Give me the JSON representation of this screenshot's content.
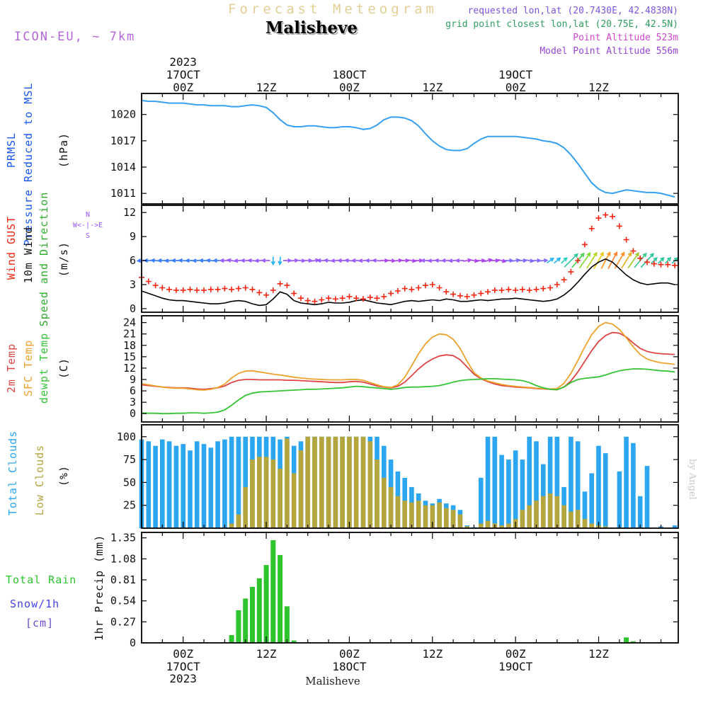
{
  "header": {
    "watermark_title": "Forecast Meteogram",
    "station": "Malisheve",
    "model": "ICON-EU, ~ 7km",
    "requested": "requested lon,lat (20.7430E, 42.4838N)",
    "grid_point": "grid point closest lon,lat (20.75E, 42.5N)",
    "altitude": "Point Altitude 523m",
    "model_altitude": "Model Point Altitude 556m"
  },
  "footer": {
    "station": "Malisheve"
  },
  "watermark": "by Angel",
  "labels": {
    "pressure": [
      "PRMSL",
      "Pressure Reduced to MSL",
      "(hPa)"
    ],
    "wind": [
      "Wind GUST",
      "10m Wind",
      "Speed and Direction",
      "(m/s)"
    ],
    "temp": [
      "2m Temp",
      "SFC Temp",
      "dewpt Temp",
      "(C)"
    ],
    "clouds": [
      "Total Clouds",
      "Low Clouds",
      "(%)"
    ],
    "precip": [
      "Total  Rain",
      "Snow/1h",
      "[cm]",
      "1hr Precip (mm)"
    ],
    "compass": [
      "N",
      "W<-|->E",
      "S"
    ]
  },
  "colors": {
    "watermark_title": "#e3cf96",
    "model": "#b466d9",
    "requested": "#7d55e0",
    "grid_point": "#2f9e60",
    "altitude": "#cf46cf",
    "model_altitude": "#9946d8",
    "pressure_label": "#1a56f0",
    "pressure_line": "#36a0f2",
    "gust": "#f22613",
    "wind_speed": "#000000",
    "green_label": "#2fae2f",
    "temp2m": "#df4545",
    "sfc": "#eca22c",
    "dew": "#35c435",
    "total_clouds": "#2da6f2",
    "low_clouds": "#b4a63c",
    "precip": "#2dc42d",
    "snow_label": "#4343e0",
    "cm_label": "#6a4ad0",
    "compass": "#9b59ff",
    "author": "#c9c9c9"
  },
  "time": {
    "start_hour": -6,
    "end_hour": 71.5,
    "step_hours": 1
  },
  "time_axis": {
    "minor_step_h": 3,
    "major": [
      {
        "h": 0,
        "z": "00Z",
        "date": "17OCT",
        "year": "2023"
      },
      {
        "h": 12,
        "z": "12Z"
      },
      {
        "h": 24,
        "z": "00Z",
        "date": "18OCT"
      },
      {
        "h": 36,
        "z": "12Z"
      },
      {
        "h": 48,
        "z": "00Z",
        "date": "19OCT"
      },
      {
        "h": 60,
        "z": "12Z"
      }
    ]
  },
  "chart_data": [
    {
      "type": "line",
      "title": "Pressure Reduced to MSL",
      "ylabel": "PRMSL Pressure Reduced to MSL (hPa)",
      "ylim": [
        1009.8,
        1022.4
      ],
      "yticks": [
        1011,
        1014,
        1017,
        1020
      ],
      "series": [
        {
          "name": "PRMSL",
          "color": "#36a0f2",
          "values": [
            1021.6,
            1021.5,
            1021.5,
            1021.4,
            1021.3,
            1021.3,
            1021.3,
            1021.2,
            1021.1,
            1021.1,
            1021.0,
            1021.0,
            1021.0,
            1020.9,
            1020.9,
            1021.0,
            1021.1,
            1021.0,
            1020.8,
            1020.2,
            1019.4,
            1018.8,
            1018.6,
            1018.6,
            1018.7,
            1018.7,
            1018.6,
            1018.5,
            1018.5,
            1018.6,
            1018.6,
            1018.5,
            1018.3,
            1018.4,
            1018.8,
            1019.4,
            1019.7,
            1019.7,
            1019.6,
            1019.3,
            1018.7,
            1017.8,
            1017.0,
            1016.4,
            1016.0,
            1015.9,
            1015.9,
            1016.1,
            1016.7,
            1017.2,
            1017.5,
            1017.5,
            1017.5,
            1017.5,
            1017.5,
            1017.4,
            1017.3,
            1017.2,
            1017.0,
            1016.9,
            1016.7,
            1016.2,
            1015.4,
            1014.4,
            1013.3,
            1012.2,
            1011.5,
            1011.1,
            1011.0,
            1011.2,
            1011.4,
            1011.3,
            1011.2,
            1011.1,
            1011.1,
            1011.0,
            1010.8,
            1010.6
          ]
        }
      ]
    },
    {
      "type": "line",
      "title": "Wind GUST / 10m Wind Speed and Direction (m/s)",
      "ylim": [
        -0.45,
        12.9
      ],
      "yticks": [
        0,
        3,
        6,
        9,
        12
      ],
      "series": [
        {
          "name": "Wind GUST",
          "color": "#f22613",
          "marker": "plus",
          "values": [
            3.9,
            3.4,
            2.9,
            2.6,
            2.4,
            2.3,
            2.3,
            2.4,
            2.3,
            2.3,
            2.4,
            2.4,
            2.5,
            2.4,
            2.5,
            2.6,
            2.4,
            2.0,
            1.7,
            2.3,
            3.1,
            2.9,
            1.9,
            1.3,
            1.0,
            0.9,
            1.1,
            1.3,
            1.2,
            1.3,
            1.5,
            1.3,
            1.2,
            1.4,
            1.3,
            1.5,
            1.9,
            2.2,
            2.5,
            2.4,
            2.6,
            2.9,
            3.0,
            2.6,
            2.1,
            1.8,
            1.6,
            1.5,
            1.7,
            1.9,
            2.1,
            2.3,
            2.3,
            2.4,
            2.3,
            2.4,
            2.3,
            2.4,
            2.5,
            2.6,
            3.0,
            3.6,
            4.6,
            6.0,
            8.0,
            10.0,
            11.3,
            11.7,
            11.5,
            10.3,
            8.6,
            7.2,
            6.3,
            5.8,
            5.6,
            5.5,
            5.5,
            5.4
          ]
        },
        {
          "name": "10m Wind",
          "color": "#000000",
          "values": [
            2.2,
            1.9,
            1.6,
            1.3,
            1.1,
            1.0,
            1.0,
            0.9,
            0.8,
            0.7,
            0.6,
            0.6,
            0.7,
            0.9,
            1.0,
            0.9,
            0.6,
            0.4,
            0.5,
            1.2,
            2.1,
            1.8,
            1.0,
            0.7,
            0.6,
            0.5,
            0.6,
            0.8,
            0.7,
            0.7,
            0.8,
            1.0,
            1.1,
            0.9,
            0.7,
            0.6,
            0.5,
            0.7,
            0.9,
            1.0,
            0.9,
            1.0,
            1.1,
            1.0,
            1.2,
            1.1,
            0.9,
            0.9,
            1.0,
            1.1,
            1.0,
            1.1,
            1.2,
            1.2,
            1.3,
            1.2,
            1.1,
            1.0,
            0.9,
            1.0,
            1.2,
            1.7,
            2.4,
            3.3,
            4.3,
            5.2,
            5.8,
            6.2,
            5.8,
            5.0,
            4.2,
            3.6,
            3.2,
            3.0,
            3.1,
            3.2,
            3.2,
            3.0
          ]
        }
      ],
      "wind_dir_deg": [
        185,
        180,
        175,
        180,
        185,
        180,
        175,
        180,
        185,
        180,
        175,
        180,
        180,
        170,
        185,
        180,
        175,
        185,
        180,
        270,
        265,
        0,
        5,
        355,
        0,
        10,
        180,
        175,
        185,
        180,
        175,
        180,
        185,
        180,
        175,
        0,
        355,
        5,
        0,
        350,
        0,
        180,
        185,
        175,
        180,
        185,
        180,
        10,
        350,
        0,
        15,
        0,
        345,
        0,
        10,
        0,
        350,
        0,
        5,
        35,
        40,
        45,
        45,
        50,
        55,
        58,
        60,
        62,
        62,
        60,
        58,
        55,
        50,
        48,
        45,
        45,
        48,
        45
      ],
      "wind_dir_color": [
        "#3a7bff",
        "#3a7bff",
        "#3a7bff",
        "#3a7bff",
        "#3a7bff",
        "#3a7bff",
        "#3a7bff",
        "#3a7bff",
        "#3a7bff",
        "#3a7bff",
        "#3a7bff",
        "#3a7bff",
        "#9b59ff",
        "#9b59ff",
        "#9b59ff",
        "#9b59ff",
        "#9b59ff",
        "#9b59ff",
        "#9b59ff",
        "#29b6f6",
        "#29b6f6",
        "#9b59ff",
        "#9b59ff",
        "#9b59ff",
        "#9b59ff",
        "#9b59ff",
        "#9b59ff",
        "#9b59ff",
        "#9b59ff",
        "#9b59ff",
        "#9b59ff",
        "#9b59ff",
        "#9b59ff",
        "#9b59ff",
        "#9b59ff",
        "#aa44ee",
        "#aa44ee",
        "#aa44ee",
        "#aa44ee",
        "#aa44ee",
        "#aa44ee",
        "#9b59ff",
        "#9b59ff",
        "#9b59ff",
        "#9b59ff",
        "#9b59ff",
        "#9b59ff",
        "#aa44ee",
        "#aa44ee",
        "#aa44ee",
        "#aa44ee",
        "#aa44ee",
        "#aa44ee",
        "#7b6bff",
        "#7b6bff",
        "#7b6bff",
        "#7b6bff",
        "#7b6bff",
        "#7b6bff",
        "#29b6f6",
        "#29b6f6",
        "#2bd0c0",
        "#35c8a0",
        "#52d052",
        "#86d832",
        "#b8d828",
        "#e8c820",
        "#ff9820",
        "#ff7f2a",
        "#ff9030",
        "#e8b028",
        "#a0cc30",
        "#40c888",
        "#2cc49c",
        "#30c8a0",
        "#2cc49c",
        "#30c8a0",
        "#2cc49c"
      ],
      "wind_dir_big": [
        0,
        0,
        0,
        0,
        0,
        0,
        0,
        0,
        0,
        0,
        0,
        0,
        0,
        0,
        0,
        0,
        0,
        0,
        0,
        0,
        0,
        0,
        0,
        0,
        0,
        0,
        0,
        0,
        0,
        0,
        0,
        0,
        0,
        0,
        0,
        0,
        0,
        0,
        0,
        0,
        0,
        0,
        0,
        0,
        0,
        0,
        0,
        0,
        0,
        0,
        0,
        0,
        0,
        0,
        0,
        0,
        0,
        0,
        0,
        0,
        0,
        0,
        1,
        1,
        1,
        1,
        1,
        1,
        1,
        1,
        1,
        1,
        1,
        1,
        0,
        0,
        0,
        0
      ]
    },
    {
      "type": "line",
      "title": "2m Temp / SFC Temp / dewpt Temp (C)",
      "ylim": [
        -2.2,
        25.8
      ],
      "yticks": [
        0,
        3,
        6,
        9,
        12,
        15,
        18,
        21,
        24
      ],
      "series": [
        {
          "name": "2m Temp",
          "color": "#df4545",
          "values": [
            7.6,
            7.4,
            7.2,
            7.0,
            6.9,
            6.8,
            6.8,
            6.7,
            6.5,
            6.4,
            6.6,
            6.8,
            7.3,
            8.2,
            8.8,
            9.0,
            9.0,
            8.9,
            8.9,
            8.9,
            8.9,
            8.8,
            8.8,
            8.7,
            8.6,
            8.5,
            8.4,
            8.3,
            8.2,
            8.2,
            8.4,
            8.5,
            8.3,
            7.8,
            7.3,
            7.0,
            6.8,
            7.2,
            8.3,
            10.0,
            11.8,
            13.3,
            14.4,
            15.2,
            15.5,
            15.3,
            14.2,
            12.3,
            10.4,
            9.2,
            8.4,
            7.8,
            7.4,
            7.2,
            7.0,
            6.9,
            6.8,
            6.6,
            6.5,
            6.4,
            6.3,
            7.0,
            8.6,
            11.0,
            13.8,
            16.6,
            19.0,
            20.6,
            21.4,
            21.2,
            20.2,
            18.6,
            17.2,
            16.4,
            16.0,
            15.8,
            15.7,
            15.6
          ]
        },
        {
          "name": "SFC Temp",
          "color": "#eca22c",
          "values": [
            7.9,
            7.6,
            7.3,
            7.0,
            6.8,
            6.7,
            6.7,
            6.5,
            6.3,
            6.2,
            6.4,
            6.9,
            7.8,
            9.4,
            10.6,
            11.2,
            11.3,
            11.0,
            10.7,
            10.4,
            10.2,
            9.9,
            9.6,
            9.4,
            9.2,
            9.1,
            9.0,
            8.9,
            8.9,
            8.9,
            9.0,
            9.0,
            8.8,
            8.2,
            7.6,
            7.1,
            6.9,
            7.6,
            9.6,
            12.6,
            15.8,
            18.4,
            20.2,
            21.0,
            20.8,
            19.6,
            17.2,
            13.8,
            10.8,
            9.4,
            8.6,
            8.1,
            7.7,
            7.4,
            7.2,
            7.0,
            6.9,
            6.7,
            6.6,
            6.5,
            6.6,
            8.0,
            10.6,
            14.0,
            17.6,
            20.8,
            23.0,
            24.0,
            23.6,
            22.2,
            20.0,
            17.6,
            15.6,
            14.4,
            13.8,
            13.4,
            13.2,
            13.0
          ]
        },
        {
          "name": "dewpt Temp",
          "color": "#35c435",
          "values": [
            0.2,
            0.1,
            0.1,
            0.0,
            0.0,
            0.1,
            0.1,
            0.2,
            0.2,
            0.1,
            0.2,
            0.4,
            1.0,
            2.2,
            3.6,
            4.8,
            5.4,
            5.7,
            5.8,
            5.9,
            6.0,
            6.1,
            6.2,
            6.3,
            6.4,
            6.4,
            6.5,
            6.6,
            6.7,
            6.8,
            7.0,
            7.2,
            7.1,
            6.9,
            6.8,
            6.6,
            6.4,
            6.6,
            6.9,
            7.0,
            7.0,
            7.1,
            7.2,
            7.4,
            7.8,
            8.3,
            8.7,
            8.9,
            9.0,
            9.1,
            9.2,
            9.2,
            9.1,
            9.0,
            8.9,
            8.7,
            8.2,
            7.4,
            6.8,
            6.4,
            6.3,
            7.0,
            8.2,
            9.0,
            9.3,
            9.5,
            9.7,
            10.2,
            10.8,
            11.3,
            11.6,
            11.8,
            11.8,
            11.7,
            11.5,
            11.3,
            11.2,
            11.0
          ]
        }
      ]
    },
    {
      "type": "bar",
      "title": "Total Clouds / Low Clouds (%)",
      "ylim": [
        0,
        113
      ],
      "yticks": [
        25,
        50,
        75,
        100
      ],
      "series": [
        {
          "name": "Total Clouds",
          "color": "#2da6f2",
          "values": [
            97,
            95,
            90,
            97,
            95,
            90,
            92,
            85,
            95,
            92,
            88,
            95,
            97,
            100,
            100,
            100,
            100,
            100,
            100,
            100,
            97,
            100,
            90,
            95,
            100,
            100,
            100,
            100,
            100,
            100,
            100,
            100,
            100,
            100,
            100,
            90,
            75,
            62,
            55,
            45,
            38,
            30,
            27,
            32,
            27,
            25,
            20,
            3,
            1,
            55,
            100,
            100,
            80,
            75,
            85,
            75,
            100,
            95,
            70,
            100,
            100,
            45,
            100,
            95,
            40,
            60,
            90,
            82,
            0,
            62,
            100,
            93,
            35,
            68,
            0,
            2,
            0,
            3
          ]
        },
        {
          "name": "Low Clouds",
          "color": "#b4a63c",
          "values": [
            0,
            0,
            0,
            0,
            0,
            0,
            0,
            0,
            0,
            0,
            0,
            0,
            0,
            5,
            15,
            45,
            75,
            78,
            78,
            75,
            65,
            98,
            60,
            85,
            100,
            100,
            100,
            100,
            100,
            100,
            100,
            100,
            100,
            95,
            75,
            55,
            45,
            35,
            30,
            28,
            30,
            25,
            25,
            28,
            22,
            20,
            15,
            2,
            0,
            5,
            8,
            5,
            3,
            5,
            10,
            20,
            25,
            30,
            35,
            38,
            35,
            25,
            18,
            20,
            10,
            5,
            3,
            2,
            0,
            0,
            0,
            0,
            0,
            0,
            0,
            0,
            0,
            0
          ]
        }
      ]
    },
    {
      "type": "bar",
      "title": "1hr Precip (mm)",
      "ylim": [
        0,
        1.42
      ],
      "yticks": [
        0,
        0.27,
        0.54,
        0.81,
        1.08,
        1.35
      ],
      "series": [
        {
          "name": "Total Rain",
          "color": "#2dc42d",
          "values": [
            0,
            0,
            0,
            0,
            0,
            0,
            0,
            0,
            0,
            0,
            0,
            0,
            0,
            0.1,
            0.42,
            0.57,
            0.72,
            0.83,
            1.0,
            1.32,
            1.13,
            0.47,
            0.03,
            0,
            0,
            0,
            0,
            0,
            0,
            0,
            0,
            0,
            0,
            0,
            0,
            0,
            0,
            0,
            0,
            0,
            0,
            0,
            0,
            0,
            0,
            0,
            0,
            0,
            0,
            0,
            0,
            0,
            0,
            0,
            0,
            0,
            0,
            0,
            0,
            0,
            0,
            0,
            0,
            0,
            0,
            0,
            0,
            0,
            0,
            0,
            0.07,
            0.02,
            0,
            0,
            0,
            0,
            0,
            0
          ]
        }
      ]
    }
  ]
}
